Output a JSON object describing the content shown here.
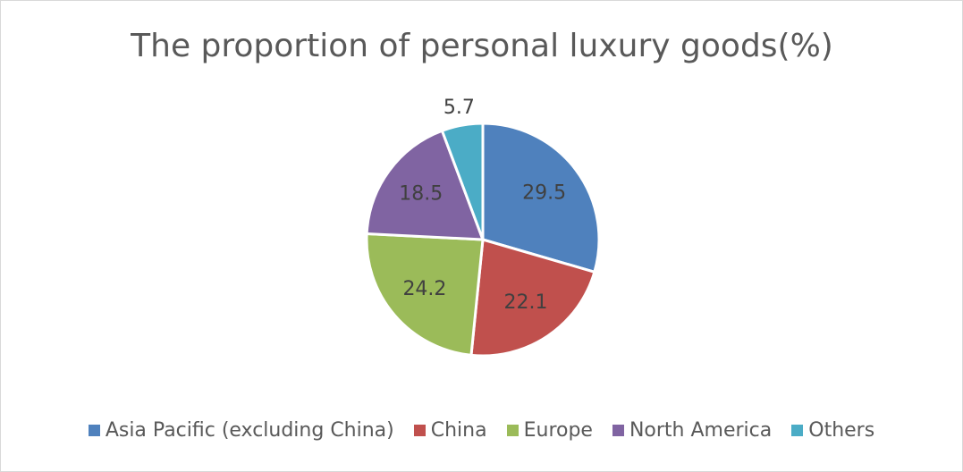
{
  "chart_data": {
    "type": "pie",
    "title": "The proportion of personal luxury goods(%)",
    "categories": [
      "Asia Pacific (excluding China)",
      "China",
      "Europe",
      "North America",
      "Others"
    ],
    "values": [
      29.5,
      22.1,
      24.2,
      18.5,
      5.7
    ],
    "colors": [
      "#4f81bd",
      "#c0504d",
      "#9bbb59",
      "#8064a2",
      "#4bacc6"
    ],
    "legend": "bottom"
  }
}
